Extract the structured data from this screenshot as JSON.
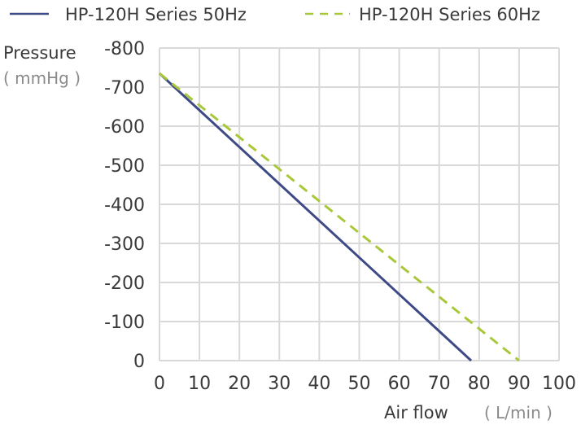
{
  "chart_data": {
    "type": "line",
    "title": "",
    "xlabel": "Air flow",
    "xunit": "( L/min )",
    "ylabel": "Pressure",
    "yunit": "( mmHg )",
    "xlim": [
      0,
      100
    ],
    "ylim": [
      0,
      -800
    ],
    "x_ticks": [
      0,
      10,
      20,
      30,
      40,
      50,
      60,
      70,
      80,
      90,
      100
    ],
    "y_ticks": [
      0,
      -100,
      -200,
      -300,
      -400,
      -500,
      -600,
      -700,
      -800
    ],
    "grid": true,
    "legend_position": "top",
    "series": [
      {
        "name": "HP-120H  Series 50Hz",
        "color": "#3d4a86",
        "style": "solid",
        "points": [
          [
            0,
            -735
          ],
          [
            78,
            0
          ]
        ]
      },
      {
        "name": "HP-120H  Series 60Hz",
        "color": "#a8c83a",
        "style": "dashed",
        "points": [
          [
            0,
            -735
          ],
          [
            90,
            0
          ]
        ]
      }
    ]
  }
}
